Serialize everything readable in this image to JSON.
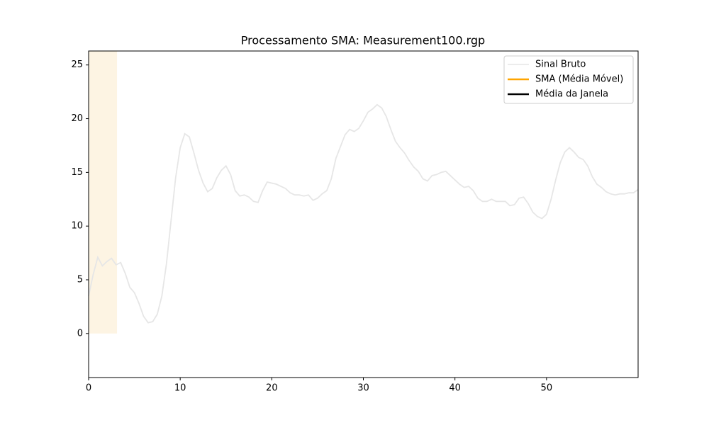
{
  "chart_data": {
    "type": "line",
    "title": "Processamento SMA: Measurement100.rgp",
    "x": [
      0,
      0.5,
      1,
      1.5,
      2,
      2.5,
      3,
      3.5,
      4,
      4.5,
      5,
      5.5,
      6,
      6.5,
      7,
      7.5,
      8,
      8.5,
      9,
      9.5,
      10,
      10.5,
      11,
      11.5,
      12,
      12.5,
      13,
      13.5,
      14,
      14.5,
      15,
      15.5,
      16,
      16.5,
      17,
      17.5,
      18,
      18.5,
      19,
      19.5,
      20,
      20.5,
      21,
      21.5,
      22,
      22.5,
      23,
      23.5,
      24,
      24.5,
      25,
      25.5,
      26,
      26.5,
      27,
      27.5,
      28,
      28.5,
      29,
      29.5,
      30,
      30.5,
      31,
      31.5,
      32,
      32.5,
      33,
      33.5,
      34,
      34.5,
      35,
      35.5,
      36,
      36.5,
      37,
      37.5,
      38,
      38.5,
      39,
      39.5,
      40,
      40.5,
      41,
      41.5,
      42,
      42.5,
      43,
      43.5,
      44,
      44.5,
      45,
      45.5,
      46,
      46.5,
      47,
      47.5,
      48,
      48.5,
      49,
      49.5,
      50,
      50.5,
      51,
      51.5,
      52,
      52.5,
      53,
      53.5,
      54,
      54.5,
      55,
      55.5,
      56,
      56.5,
      57,
      57.5,
      58,
      58.5,
      59,
      59.5,
      60
    ],
    "series": [
      {
        "name": "Sinal Bruto",
        "color": "#e6e6e6",
        "values": [
          3.5,
          5.5,
          7.1,
          6.3,
          6.7,
          7.0,
          6.4,
          6.6,
          5.6,
          4.3,
          3.8,
          2.8,
          1.6,
          1.0,
          1.1,
          1.8,
          3.5,
          6.5,
          10.5,
          14.5,
          17.3,
          18.6,
          18.3,
          16.8,
          15.2,
          14.0,
          13.2,
          13.5,
          14.5,
          15.2,
          15.6,
          14.8,
          13.3,
          12.8,
          12.9,
          12.7,
          12.3,
          12.2,
          13.3,
          14.1,
          14.0,
          13.9,
          13.7,
          13.5,
          13.1,
          12.9,
          12.9,
          12.8,
          12.9,
          12.4,
          12.6,
          13.0,
          13.3,
          14.4,
          16.3,
          17.4,
          18.5,
          19.0,
          18.8,
          19.1,
          19.8,
          20.6,
          20.9,
          21.3,
          21.0,
          20.2,
          19.0,
          17.9,
          17.3,
          16.8,
          16.1,
          15.5,
          15.1,
          14.4,
          14.2,
          14.7,
          14.8,
          15.0,
          15.1,
          14.7,
          14.3,
          13.9,
          13.6,
          13.7,
          13.3,
          12.6,
          12.3,
          12.3,
          12.5,
          12.3,
          12.3,
          12.3,
          11.9,
          12.0,
          12.6,
          12.7,
          12.1,
          11.3,
          10.9,
          10.7,
          11.1,
          12.5,
          14.3,
          15.9,
          16.9,
          17.3,
          16.9,
          16.4,
          16.2,
          15.6,
          14.6,
          13.9,
          13.6,
          13.2,
          13.0,
          12.9,
          13.0,
          13.0,
          13.1,
          13.1,
          13.4
        ]
      },
      {
        "name": "SMA (Média Móvel)",
        "color": "#ffa500"
      },
      {
        "name": "Média da Janela",
        "color": "#000000"
      }
    ],
    "window_span": {
      "x": [
        0,
        3.1
      ],
      "y": [
        0,
        26.3
      ],
      "color": "#fdf4e3"
    },
    "xlim": [
      0,
      60
    ],
    "xticks": [
      0,
      10,
      20,
      30,
      40,
      50
    ],
    "ylim": [
      -4.1,
      26.3
    ],
    "yticks": [
      0,
      5,
      10,
      15,
      20,
      25
    ],
    "grid": false,
    "legend": "upper right"
  }
}
